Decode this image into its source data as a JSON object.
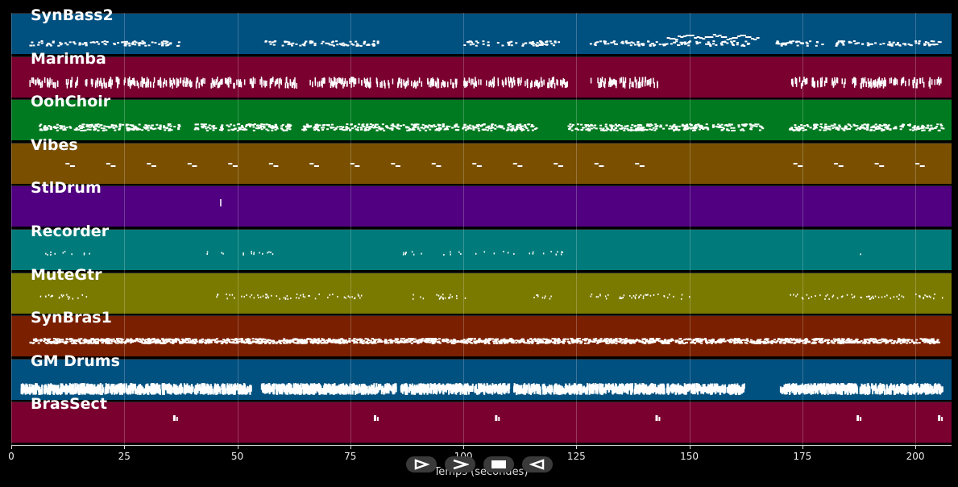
{
  "tracks": [
    {
      "name": "SynBass2",
      "color": "#005080",
      "pattern": "bass"
    },
    {
      "name": "Marimba",
      "color": "#7a0030",
      "pattern": "marimba"
    },
    {
      "name": "OohChoir",
      "color": "#007a20",
      "pattern": "choir"
    },
    {
      "name": "Vibes",
      "color": "#7a5000",
      "pattern": "vibes"
    },
    {
      "name": "StlDrum",
      "color": "#500080",
      "pattern": "stldrum"
    },
    {
      "name": "Recorder",
      "color": "#007a7a",
      "pattern": "recorder"
    },
    {
      "name": "MuteGtr",
      "color": "#7a7a00",
      "pattern": "mutegtr"
    },
    {
      "name": "SynBras1",
      "color": "#7a2000",
      "pattern": "synbras"
    },
    {
      "name": "GM Drums",
      "color": "#005080",
      "pattern": "drums"
    },
    {
      "name": "BrasSect",
      "color": "#7a0030",
      "pattern": "brassect"
    }
  ],
  "axis": {
    "xlabel": "Temps (secondes)",
    "xmin": 0,
    "xmax": 208,
    "ticks": [
      0,
      25,
      50,
      75,
      100,
      125,
      150,
      175,
      200
    ]
  },
  "controls": {
    "play_icon": "play-outline-icon",
    "forward_icon": "fast-forward-icon",
    "stop_icon": "stop-icon",
    "back_icon": "rewind-icon"
  }
}
